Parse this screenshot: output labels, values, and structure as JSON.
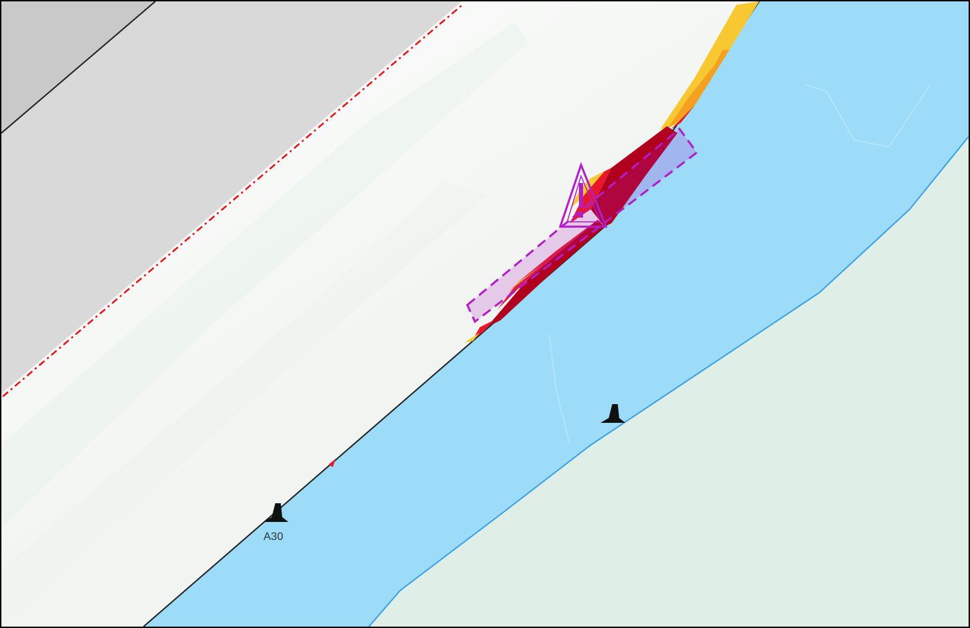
{
  "map": {
    "colors": {
      "land_shade": "#d9d9d9",
      "land_shade_dark": "#c8c8c8",
      "water": "#9ddcf8",
      "water_edge": "#3aa1e8",
      "shore_land": "#e0eee8",
      "boundary_dashed": "#e8141a",
      "caution_area": "#b21ec8",
      "erosion_dark": "#b0001e",
      "erosion_mid": "#e8182a",
      "erosion_light": "#f7c832"
    },
    "symbols": [
      {
        "icon": "buoy-beacon-icon",
        "label": "A30"
      },
      {
        "icon": "buoy-beacon-icon",
        "label": ""
      }
    ],
    "caution_symbol": {
      "icon": "warning-triangle-icon"
    }
  }
}
